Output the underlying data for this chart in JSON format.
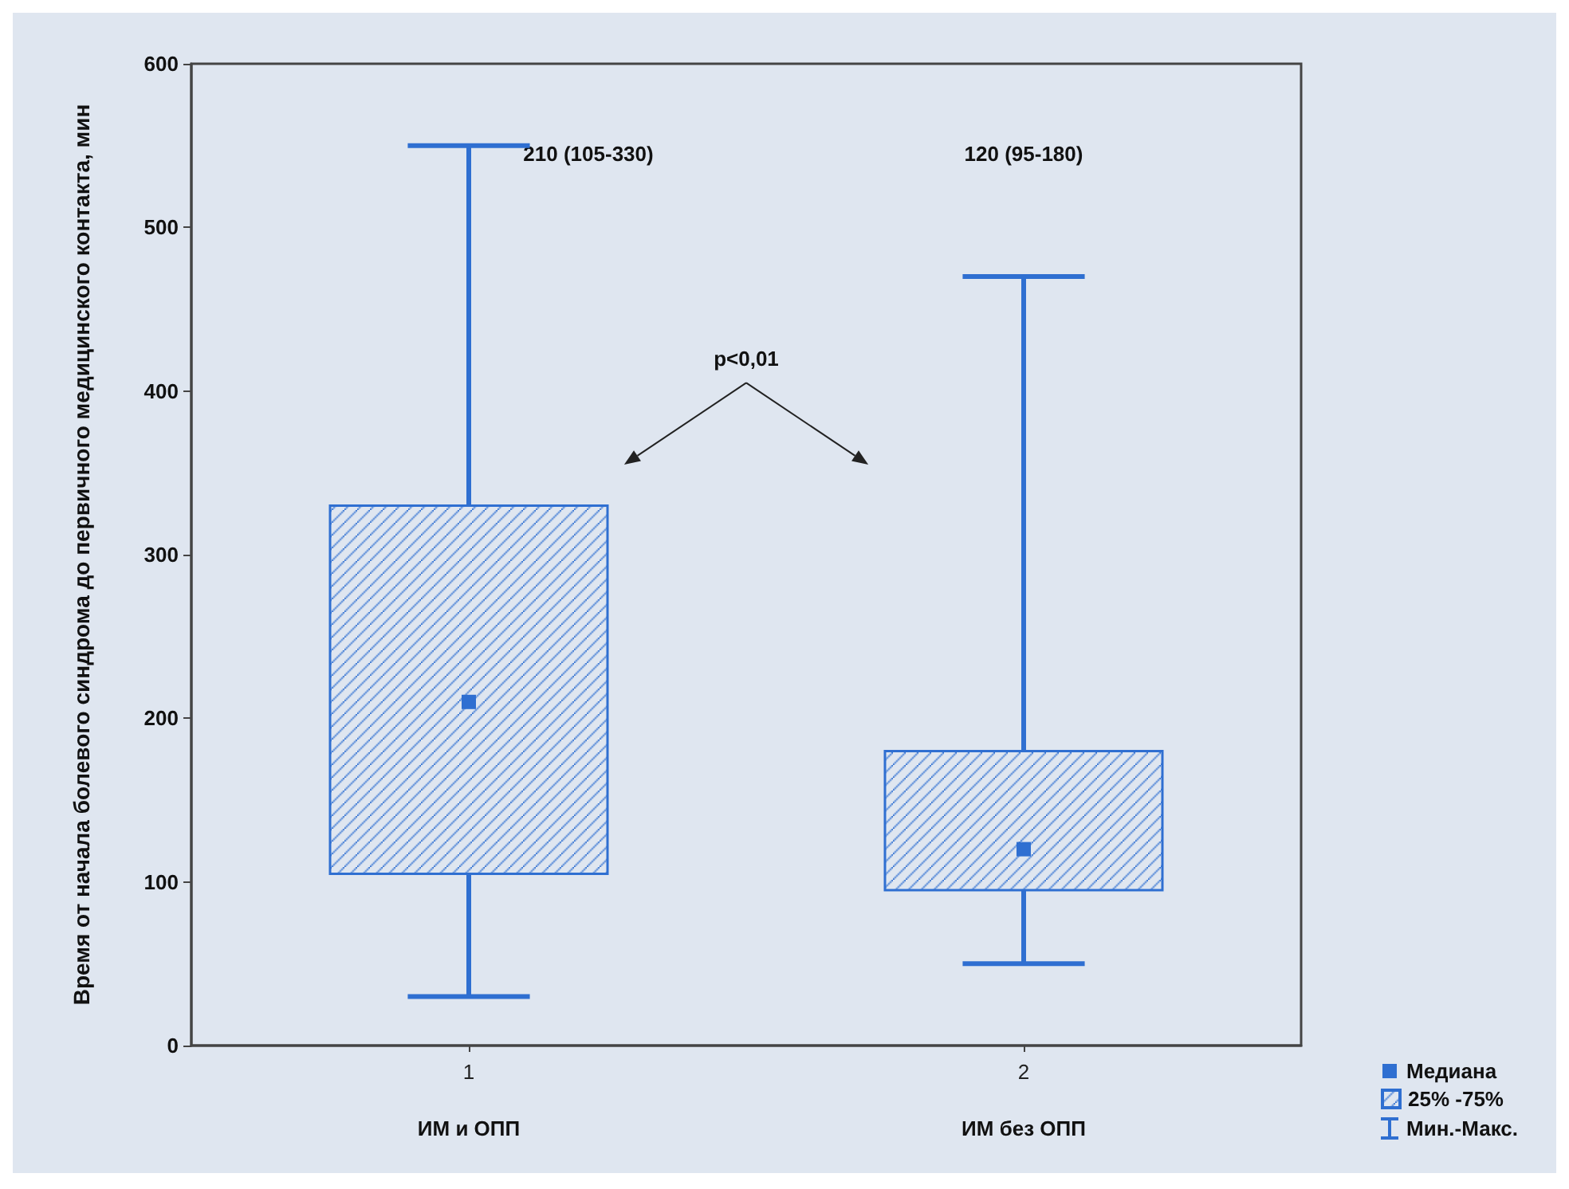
{
  "chart_data": {
    "type": "box",
    "ylabel": "Время от начала болевого синдрома до первичного медицинского контакта, мин",
    "categories": [
      "1",
      "2"
    ],
    "ylim": [
      0,
      600
    ],
    "yticks": [
      0,
      100,
      200,
      300,
      400,
      500,
      600
    ],
    "legend": "bottom right",
    "marker": "square",
    "annotations": [
      "ИМ и ОПП",
      "ИМ без ОПП",
      "210 (105-330)",
      "120 (95-180)",
      "p<0,01",
      "Медиана",
      "Мин.-Макс."
    ],
    "series": [
      {
        "name": "25% -75%",
        "color": "#2f6fd1",
        "boxes": [
          {
            "low": 30,
            "q1": 105,
            "median": 210,
            "q3": 330,
            "high": 550
          },
          {
            "low": 50,
            "q1": 95,
            "median": 120,
            "q3": 180,
            "high": 470
          }
        ]
      }
    ]
  }
}
